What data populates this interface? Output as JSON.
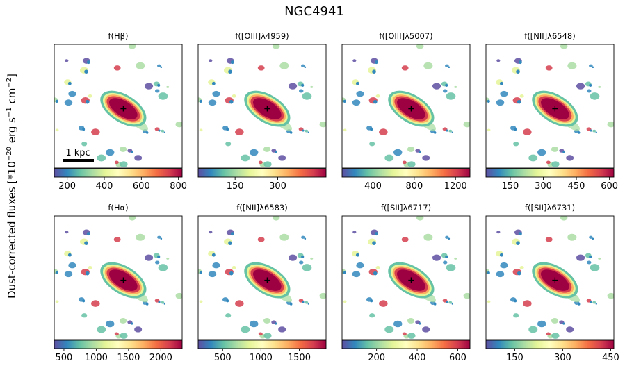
{
  "chart_data": {
    "type": "heatmap",
    "title": "NGC4941",
    "ylabel_main": "Dust-corrected fluxes [*10",
    "ylabel_exp1": "−20",
    "ylabel_mid": " erg s",
    "ylabel_exp2": "−1",
    "ylabel_mid2": " cm",
    "ylabel_exp3": "−2",
    "ylabel_end": "]",
    "scalebar_label": "1 kpc",
    "colormap": [
      "#5e4fa2",
      "#3288bd",
      "#66c2a5",
      "#abdda4",
      "#e6f598",
      "#ffffbf",
      "#fee08b",
      "#fdae61",
      "#f46d43",
      "#d53e4f",
      "#9e0142"
    ],
    "panels": [
      {
        "name": "hbeta",
        "title": "f(Hβ)",
        "range": [
          130,
          820
        ],
        "ticks": [
          200,
          400,
          600,
          800
        ],
        "tick_labels": [
          "200",
          "400",
          "600",
          "800"
        ]
      },
      {
        "name": "oiii4959",
        "title": "f([OIII]λ4959)",
        "range": [
          20,
          470
        ],
        "ticks": [
          150,
          300
        ],
        "tick_labels": [
          "150",
          "300"
        ]
      },
      {
        "name": "oiii5007",
        "title": "f([OIII]λ5007)",
        "range": [
          100,
          1340
        ],
        "ticks": [
          400,
          800,
          1200
        ],
        "tick_labels": [
          "400",
          "800",
          "1200"
        ]
      },
      {
        "name": "nii6548",
        "title": "f([NII]λ6548)",
        "range": [
          40,
          620
        ],
        "ticks": [
          150,
          300,
          450,
          600
        ],
        "tick_labels": [
          "150",
          "300",
          "450",
          "600"
        ]
      },
      {
        "name": "halpha",
        "title": "f(Hα)",
        "range": [
          350,
          2330
        ],
        "ticks": [
          500,
          1000,
          1500,
          2000
        ],
        "tick_labels": [
          "500",
          "1000",
          "1500",
          "2000"
        ]
      },
      {
        "name": "nii6583",
        "title": "f([NII]λ6583)",
        "range": [
          180,
          1850
        ],
        "ticks": [
          500,
          1000,
          1500
        ],
        "tick_labels": [
          "500",
          "1000",
          "1500"
        ]
      },
      {
        "name": "sii6717",
        "title": "f([SII]λ6717)",
        "range": [
          30,
          660
        ],
        "ticks": [
          200,
          400,
          600
        ],
        "tick_labels": [
          "200",
          "400",
          "600"
        ]
      },
      {
        "name": "sii6731",
        "title": "f([SII]λ6731)",
        "range": [
          60,
          460
        ],
        "ticks": [
          150,
          300,
          450
        ],
        "tick_labels": [
          "150",
          "300",
          "450"
        ]
      }
    ]
  }
}
